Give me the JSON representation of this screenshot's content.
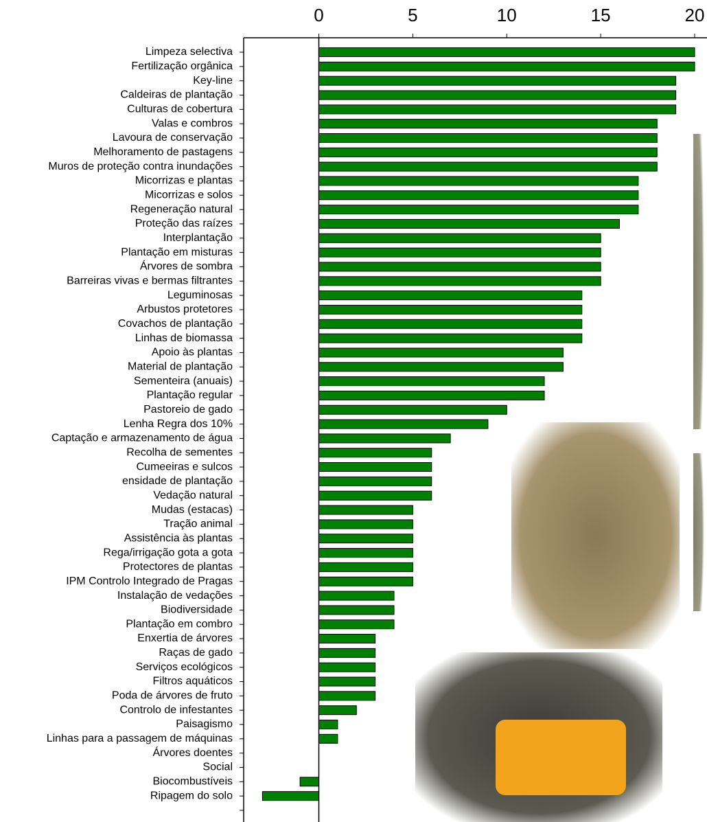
{
  "chart_data": {
    "type": "barh",
    "color": "#008000",
    "categories": [
      "Limpeza selectiva",
      "Fertilização orgânica",
      "Key-line",
      "Caldeiras de plantação",
      "Culturas de cobertura",
      "Valas e combros",
      "Lavoura de conservação",
      "Melhoramento de pastagens ",
      "Muros de proteção contra inundações",
      "Micorrizas e plantas",
      "Micorrizas e solos",
      "Regeneração natural",
      "Proteção das raízes",
      "Interplantação",
      "Plantação em misturas",
      "Árvores de sombra",
      "Barreiras vivas e bermas filtrantes",
      "Leguminosas ",
      "Arbustos protetores",
      "Covachos de plantação",
      "Linhas de biomassa",
      "Apoio às plantas",
      "Material de plantação",
      "Sementeira (anuais)",
      "Plantação regular",
      "Pastoreio de gado",
      "Lenha Regra dos 10%",
      "Captação e armazenamento de água",
      "Recolha de sementes",
      "Cumeeiras e sulcos",
      "ensidade de plantação",
      "Vedação natural",
      "Mudas (estacas)",
      "Tração animal",
      "Assistência às plantas",
      "Rega/irrigação gota a gota",
      "Protectores de plantas",
      "IPM Controlo Integrado de Pragas",
      "Instalação de vedações",
      "Biodiversidade",
      "Plantação em combro",
      "Enxertia de árvores",
      "Raças de gado",
      "Serviços ecológicos",
      "Filtros aquáticos",
      "Poda de árvores de fruto",
      "Controlo de infestantes",
      "Paisagismo",
      "Linhas para a passagem de máquinas",
      "Árvores doentes",
      "Social",
      "Biocombustíveis",
      "Ripagem do solo",
      null
    ],
    "values": [
      20,
      20,
      19,
      19,
      19,
      18,
      18,
      18,
      18,
      17,
      17,
      17,
      16,
      15,
      15,
      15,
      15,
      14,
      14,
      14,
      14,
      13,
      13,
      12,
      12,
      10,
      9,
      7,
      6,
      6,
      6,
      6,
      5,
      5,
      5,
      5,
      5,
      5,
      4,
      4,
      4,
      3,
      3,
      3,
      3,
      3,
      2,
      1,
      1,
      0,
      0,
      -1,
      -3,
      null
    ],
    "xlim": [
      -4,
      20
    ],
    "xticks": [
      0,
      5,
      10,
      15,
      20
    ]
  }
}
